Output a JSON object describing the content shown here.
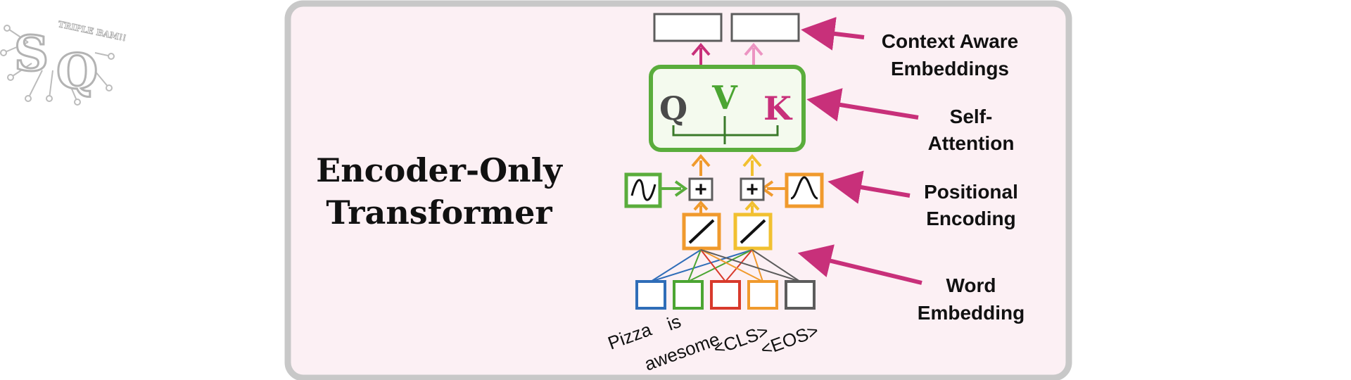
{
  "logo": {
    "letters": "SQ",
    "tagline": "TRIPLE BAM!!"
  },
  "title": {
    "line1": "Encoder-Only",
    "line2": "Transformer"
  },
  "attention": {
    "q": "Q",
    "v": "V",
    "k": "K"
  },
  "plus_symbol": "+",
  "tokens": [
    "Pizza",
    "is",
    "awesome",
    "<CLS>",
    "<EOS>"
  ],
  "labels": {
    "context": [
      "Context Aware",
      "Embeddings"
    ],
    "self_attention": [
      "Self-",
      "Attention"
    ],
    "positional": [
      "Positional",
      "Encoding"
    ],
    "word": [
      "Word",
      "Embedding"
    ]
  },
  "colors": {
    "panel_bg": "#fcf0f4",
    "panel_border": "#c8c8c8",
    "attention_green": "#5aad3c",
    "magenta": "#c8307a",
    "pink": "#ec94c2",
    "orange": "#f09a2d",
    "yellow": "#f1c030",
    "gray": "#5c5c5c",
    "token_blue": "#2f6db8",
    "token_green": "#4ba532",
    "token_red": "#d83a2c",
    "token_orange": "#f09a2d",
    "token_gray": "#5c5c5c"
  }
}
